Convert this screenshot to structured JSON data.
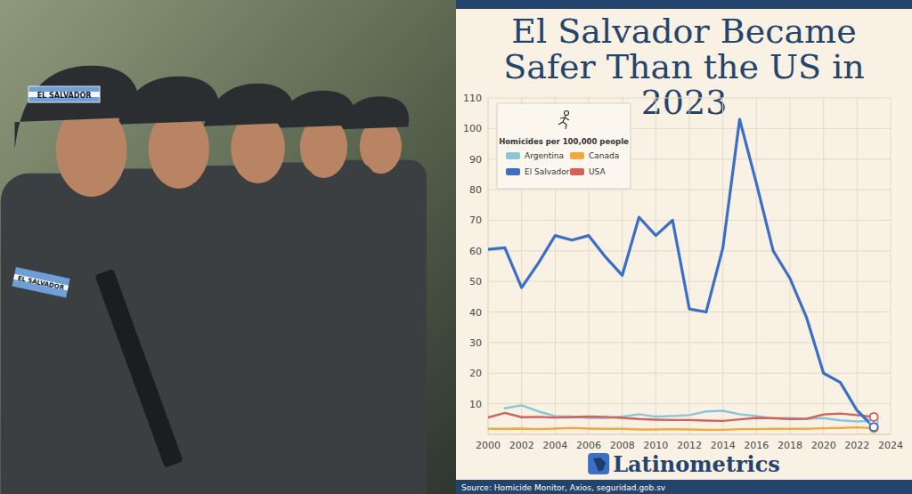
{
  "photo": {
    "patch_text": "EL SALVADOR"
  },
  "chart_data": {
    "type": "line",
    "title": "El Salvador Became Safer Than the US in 2023",
    "ylabel": "Homicides per 100,000 people",
    "source": "Source: Homicide Monitor, Axios, seguridad.gob.sv",
    "brand": "Latinometrics",
    "x": [
      2000,
      2001,
      2002,
      2003,
      2004,
      2005,
      2006,
      2007,
      2008,
      2009,
      2010,
      2011,
      2012,
      2013,
      2014,
      2015,
      2016,
      2017,
      2018,
      2019,
      2020,
      2021,
      2022,
      2023
    ],
    "series": [
      {
        "name": "Argentina",
        "color": "#8cc5d6",
        "values": [
          null,
          8.5,
          9.5,
          7.5,
          6,
          5.8,
          5.4,
          5.3,
          5.8,
          6.6,
          5.8,
          6,
          6.3,
          7.5,
          7.7,
          6.6,
          6,
          5.2,
          5.3,
          5.1,
          5.3,
          4.6,
          4.2,
          4.4
        ]
      },
      {
        "name": "Canada",
        "color": "#f2a93b",
        "values": [
          1.8,
          1.8,
          1.9,
          1.7,
          1.9,
          2.1,
          1.9,
          1.8,
          1.8,
          1.6,
          1.6,
          1.7,
          1.6,
          1.5,
          1.5,
          1.7,
          1.7,
          1.8,
          1.8,
          1.8,
          2.0,
          2.1,
          2.3,
          2.0
        ]
      },
      {
        "name": "El Salvador",
        "color": "#3b6fc6",
        "values": [
          60.5,
          61,
          48,
          56,
          65,
          63.5,
          65,
          58,
          52,
          71,
          65,
          70,
          41,
          40,
          61,
          103,
          82,
          60,
          51,
          38,
          20,
          17,
          7.8,
          2.4
        ]
      },
      {
        "name": "USA",
        "color": "#d4605a",
        "values": [
          5.5,
          7,
          5.6,
          5.7,
          5.5,
          5.6,
          5.8,
          5.7,
          5.4,
          5.0,
          4.8,
          4.7,
          4.7,
          4.5,
          4.4,
          4.9,
          5.4,
          5.3,
          5.0,
          5.1,
          6.5,
          6.8,
          6.3,
          5.7
        ]
      }
    ],
    "xlim": [
      2000,
      2024
    ],
    "xticks": [
      2000,
      2002,
      2004,
      2006,
      2008,
      2010,
      2012,
      2014,
      2016,
      2018,
      2020,
      2022,
      2024
    ],
    "ylim": [
      0,
      110
    ],
    "yticks": [
      10,
      20,
      30,
      40,
      50,
      60,
      70,
      80,
      90,
      100,
      110
    ],
    "grid": true,
    "legend": "top-left"
  }
}
